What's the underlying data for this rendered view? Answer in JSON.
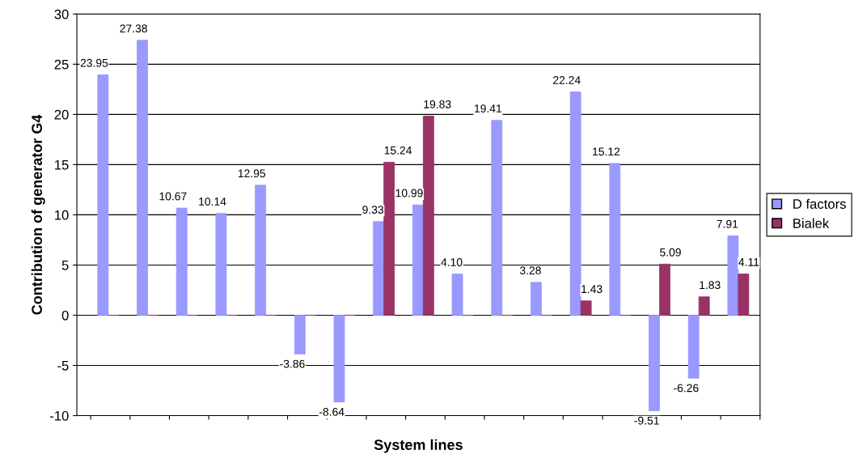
{
  "chart_data": {
    "type": "bar",
    "xlabel": "System lines",
    "ylabel": "Contribution of generator G4",
    "categories": [
      null,
      null,
      null,
      null,
      null,
      null,
      null,
      null,
      null,
      null,
      null,
      null,
      null,
      null,
      null,
      null,
      null
    ],
    "series": [
      {
        "name": "D factors",
        "color": "#9999ff",
        "values": [
          23.95,
          27.38,
          10.67,
          10.14,
          12.95,
          -3.86,
          -8.64,
          9.33,
          10.99,
          4.1,
          19.41,
          3.28,
          22.24,
          15.12,
          -9.51,
          -6.26,
          7.91
        ],
        "value_labels": [
          "23.95",
          "27.38",
          "10.67",
          "10.14",
          "12.95",
          "-3.86",
          "-8.64",
          "9.33",
          "10.99",
          "4.10",
          "19.41",
          "3.28",
          "22.24",
          "15.12",
          "-9.51",
          "-6.26",
          "7.91"
        ]
      },
      {
        "name": "Bialek",
        "color": "#993366",
        "values": [
          0,
          0,
          0,
          0,
          0,
          0,
          0,
          15.24,
          19.83,
          0,
          0,
          0,
          1.43,
          0,
          5.09,
          1.83,
          4.11
        ],
        "value_labels": [
          null,
          null,
          null,
          null,
          null,
          null,
          null,
          "15.24",
          "19.83",
          null,
          null,
          null,
          "1.43",
          null,
          "5.09",
          "1.83",
          "4.11"
        ]
      }
    ],
    "ylim": [
      -10,
      30
    ],
    "yticks": [
      -10,
      -5,
      0,
      5,
      10,
      15,
      20,
      25,
      30
    ],
    "grid": "y",
    "legend": "right"
  }
}
